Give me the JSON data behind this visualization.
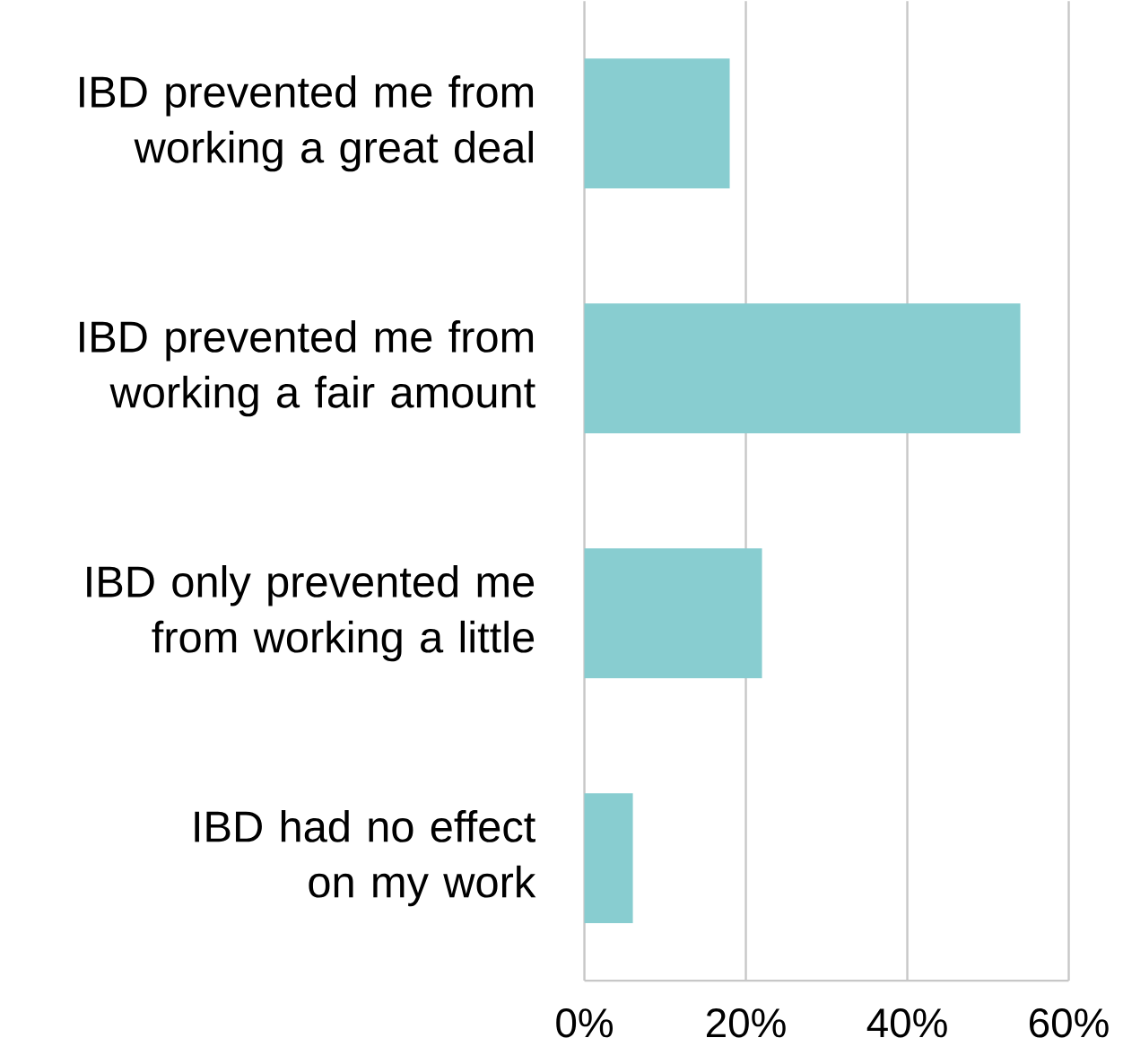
{
  "chart_data": {
    "type": "bar",
    "orientation": "horizontal",
    "categories": [
      "IBD prevented me from working a great deal",
      "IBD prevented me from working a fair amount",
      "IBD only prevented me from working a little",
      "IBD had no effect on my work"
    ],
    "values": [
      18,
      54,
      22,
      6
    ],
    "color": "#88cdd0",
    "xlim": [
      0,
      60
    ],
    "xticks": [
      {
        "value": 0,
        "label": "0%"
      },
      {
        "value": 20,
        "label": "20%"
      },
      {
        "value": 40,
        "label": "40%"
      },
      {
        "value": 60,
        "label": "60%"
      }
    ],
    "grid": "x"
  }
}
